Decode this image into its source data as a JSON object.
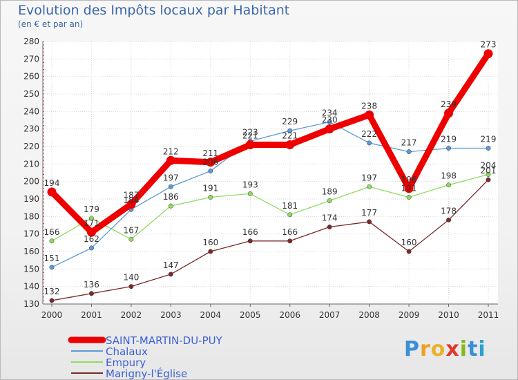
{
  "title": "Evolution des Impôts locaux par Habitant",
  "subtitle": "(en € et par an)",
  "logo_letters": [
    "P",
    "r",
    "o",
    "x",
    "i",
    "t",
    "i"
  ],
  "logo_colors": [
    "#3a8fd6",
    "#f0a020",
    "#e8b32a",
    "#e2372a",
    "#86b81e",
    "#3a8fd6",
    "#2aa0d0"
  ],
  "chart_data": {
    "type": "line",
    "x": [
      "2000",
      "2001",
      "2002",
      "2003",
      "2004",
      "2005",
      "2006",
      "2007",
      "2008",
      "2009",
      "2010",
      "2011"
    ],
    "ylim": [
      130,
      280
    ],
    "yticks": [
      130,
      140,
      150,
      160,
      170,
      180,
      190,
      200,
      210,
      220,
      230,
      240,
      250,
      260,
      270,
      280
    ],
    "grid": true,
    "legend": "bottom-left",
    "series": [
      {
        "name": "SAINT-MARTIN-DU-PUY",
        "color": "#ee0000",
        "values": [
          194,
          171,
          187,
          212,
          211,
          221,
          221,
          230,
          238,
          196,
          239,
          273
        ]
      },
      {
        "name": "Chalaux",
        "color": "#5b9bd5",
        "values": [
          151,
          162,
          184,
          197,
          206,
          223,
          229,
          234,
          222,
          217,
          219,
          219
        ]
      },
      {
        "name": "Empury",
        "color": "#8fdb5f",
        "values": [
          166,
          179,
          167,
          186,
          191,
          193,
          181,
          189,
          197,
          191,
          198,
          204
        ]
      },
      {
        "name": "Marigny-l'Église",
        "color": "#7a2a2a",
        "values": [
          132,
          136,
          140,
          147,
          160,
          166,
          166,
          174,
          177,
          160,
          178,
          201
        ]
      }
    ]
  }
}
